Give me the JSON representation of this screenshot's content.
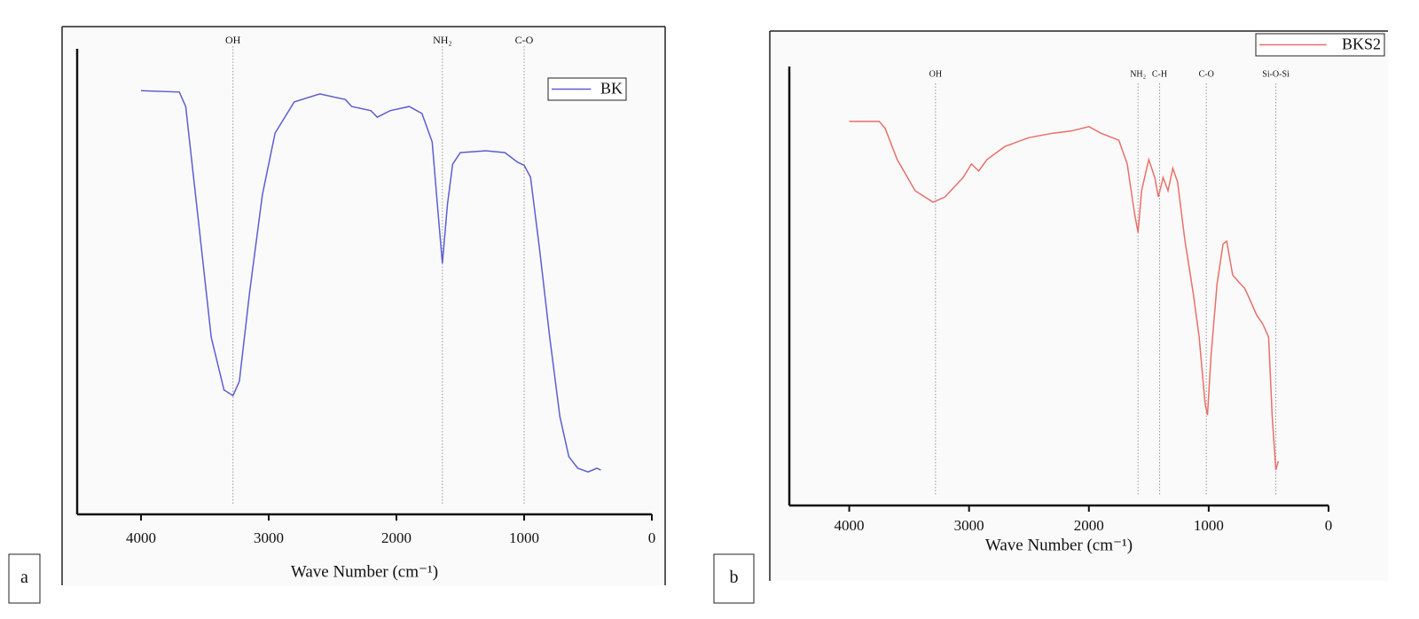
{
  "chart_data": [
    {
      "type": "line",
      "panel_label": "a",
      "xlabel": "Wave Number (cm⁻¹)",
      "xlim": [
        4500,
        0
      ],
      "ylim": [
        0,
        100
      ],
      "xticks": [
        4000,
        3000,
        2000,
        1000,
        0
      ],
      "legend": "top-right",
      "annotations": [
        {
          "text": "OH",
          "x": 3280
        },
        {
          "text": "NH₂",
          "x": 1640
        },
        {
          "text": "C-O",
          "x": 1000
        }
      ],
      "series": [
        {
          "name": "BK",
          "color": "#5b5fd0",
          "x": [
            4000,
            3700,
            3650,
            3550,
            3450,
            3350,
            3280,
            3230,
            3150,
            3050,
            2950,
            2800,
            2600,
            2400,
            2350,
            2200,
            2150,
            2050,
            1900,
            1800,
            1720,
            1680,
            1640,
            1600,
            1560,
            1500,
            1300,
            1150,
            1050,
            1000,
            950,
            880,
            800,
            720,
            650,
            580,
            500,
            430,
            400
          ],
          "values": [
            91,
            90.7,
            87.6,
            62.9,
            38,
            26.7,
            25.5,
            28.6,
            47.6,
            68.6,
            81.9,
            88.6,
            90.3,
            89.1,
            87.6,
            86.7,
            85.3,
            86.7,
            87.6,
            86.1,
            80,
            66.7,
            53.9,
            66.7,
            75.2,
            77.7,
            78.1,
            77.7,
            75.6,
            75,
            72.4,
            57.1,
            38.1,
            21,
            12.4,
            9.9,
            9.1,
            9.9,
            9.5
          ]
        }
      ]
    },
    {
      "type": "line",
      "panel_label": "b",
      "xlabel": "Wave Number (cm⁻¹)",
      "xlim": [
        4500,
        0
      ],
      "ylim": [
        0,
        100
      ],
      "xticks": [
        4000,
        3000,
        2000,
        1000,
        0
      ],
      "legend": "top-right",
      "annotations": [
        {
          "text": "OH",
          "x": 3280
        },
        {
          "text": "NH₂",
          "x": 1590
        },
        {
          "text": "C-H",
          "x": 1410
        },
        {
          "text": "C-O",
          "x": 1020
        },
        {
          "text": "Si-O-Si",
          "x": 440
        }
      ],
      "series": [
        {
          "name": "BKS2",
          "color": "#e8706a",
          "x": [
            4000,
            3750,
            3700,
            3600,
            3450,
            3300,
            3200,
            3050,
            2980,
            2920,
            2850,
            2700,
            2500,
            2300,
            2150,
            2000,
            1900,
            1750,
            1680,
            1620,
            1590,
            1560,
            1500,
            1450,
            1420,
            1380,
            1340,
            1300,
            1260,
            1200,
            1130,
            1080,
            1030,
            1010,
            980,
            930,
            880,
            850,
            800,
            750,
            700,
            650,
            600,
            550,
            500,
            470,
            440,
            420
          ],
          "values": [
            87.5,
            87.5,
            85.9,
            78.8,
            71.7,
            69.1,
            70.3,
            74.7,
            77.8,
            76.2,
            78.8,
            81.8,
            83.8,
            84.8,
            85.3,
            86.3,
            84.8,
            83.2,
            77.8,
            66.7,
            62.2,
            71.7,
            78.8,
            74.7,
            70.3,
            74.7,
            71.7,
            76.8,
            73.7,
            60.6,
            48.5,
            38.4,
            23.2,
            20.6,
            34.3,
            50.5,
            59.6,
            60.2,
            52.5,
            50.9,
            49.5,
            46.5,
            43.4,
            41.4,
            38.4,
            20.2,
            8.1,
            10.1
          ]
        }
      ]
    }
  ]
}
